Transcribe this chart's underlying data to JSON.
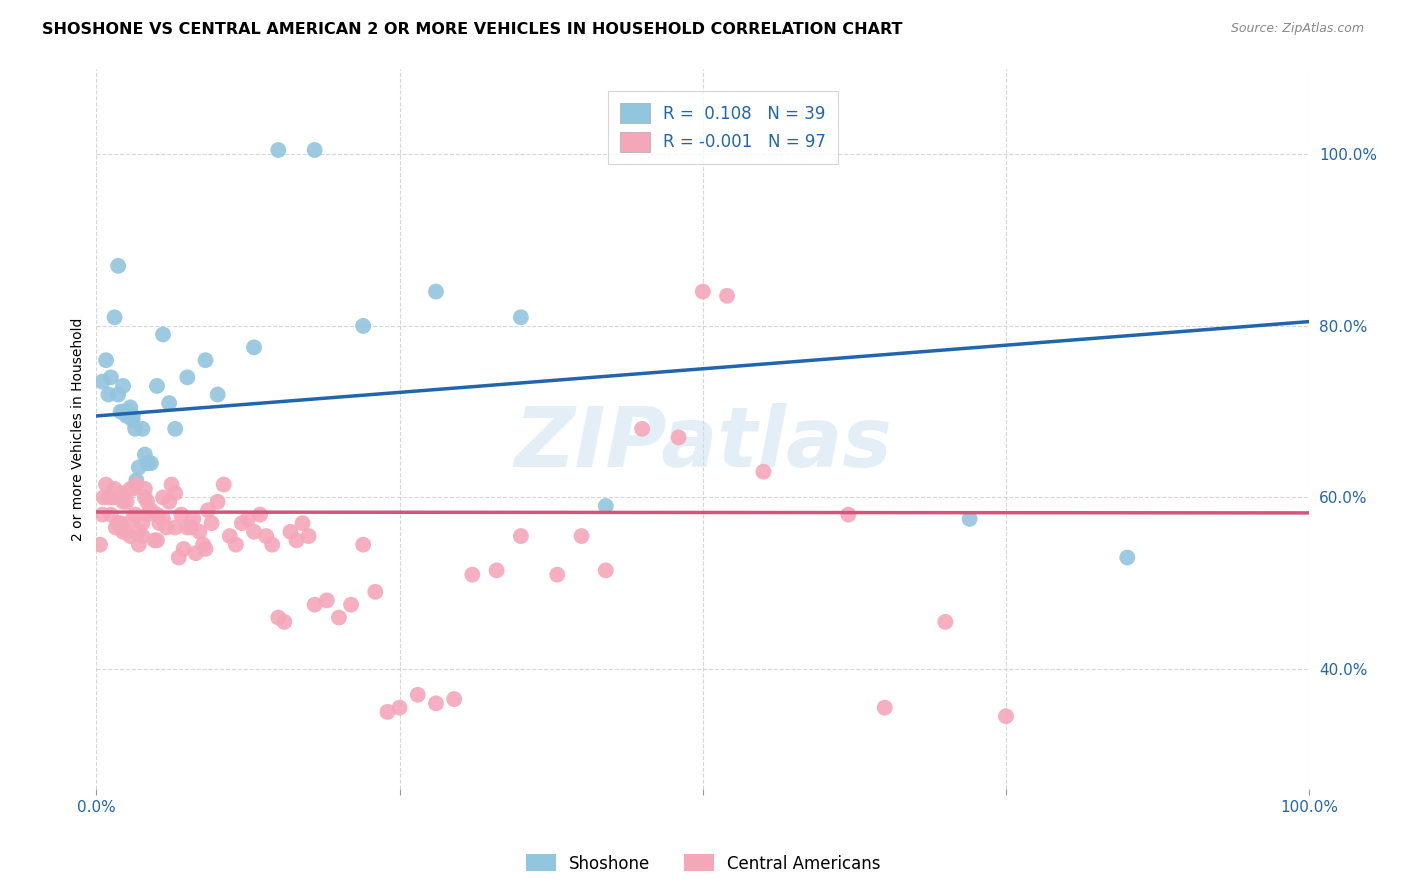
{
  "title": "SHOSHONE VS CENTRAL AMERICAN 2 OR MORE VEHICLES IN HOUSEHOLD CORRELATION CHART",
  "source": "Source: ZipAtlas.com",
  "ylabel": "2 or more Vehicles in Household",
  "xlim": [
    0.0,
    1.0
  ],
  "ylim": [
    0.26,
    1.1
  ],
  "yticks": [
    0.4,
    0.6,
    0.8,
    1.0
  ],
  "ytick_labels": [
    "40.0%",
    "60.0%",
    "80.0%",
    "100.0%"
  ],
  "blue_R": 0.108,
  "blue_N": 39,
  "pink_R": -0.001,
  "pink_N": 97,
  "blue_color": "#92c5de",
  "pink_color": "#f4a7b9",
  "blue_line_color": "#2166ac",
  "pink_line_color": "#d6537a",
  "legend_text_color": "#2166ac",
  "watermark_text": "ZIPatlas",
  "blue_line_x0": 0.0,
  "blue_line_y0": 0.695,
  "blue_line_x1": 1.0,
  "blue_line_y1": 0.805,
  "pink_line_x0": 0.0,
  "pink_line_y0": 0.583,
  "pink_line_x1": 1.0,
  "pink_line_y1": 0.582,
  "blue_points_x": [
    0.005,
    0.008,
    0.01,
    0.012,
    0.015,
    0.018,
    0.018,
    0.02,
    0.022,
    0.022,
    0.025,
    0.025,
    0.028,
    0.028,
    0.03,
    0.03,
    0.032,
    0.033,
    0.035,
    0.038,
    0.04,
    0.042,
    0.045,
    0.05,
    0.055,
    0.06,
    0.065,
    0.075,
    0.09,
    0.1,
    0.13,
    0.15,
    0.18,
    0.22,
    0.28,
    0.35,
    0.42,
    0.72,
    0.85
  ],
  "blue_points_y": [
    0.735,
    0.76,
    0.72,
    0.74,
    0.81,
    0.87,
    0.72,
    0.7,
    0.73,
    0.7,
    0.7,
    0.695,
    0.705,
    0.695,
    0.695,
    0.69,
    0.68,
    0.62,
    0.635,
    0.68,
    0.65,
    0.64,
    0.64,
    0.73,
    0.79,
    0.71,
    0.68,
    0.74,
    0.76,
    0.72,
    0.775,
    1.005,
    1.005,
    0.8,
    0.84,
    0.81,
    0.59,
    0.575,
    0.53
  ],
  "pink_points_x": [
    0.003,
    0.005,
    0.006,
    0.008,
    0.01,
    0.012,
    0.014,
    0.015,
    0.016,
    0.018,
    0.018,
    0.02,
    0.02,
    0.022,
    0.022,
    0.025,
    0.025,
    0.028,
    0.028,
    0.03,
    0.03,
    0.032,
    0.033,
    0.035,
    0.035,
    0.038,
    0.038,
    0.04,
    0.04,
    0.042,
    0.042,
    0.045,
    0.048,
    0.05,
    0.05,
    0.052,
    0.055,
    0.055,
    0.058,
    0.06,
    0.062,
    0.065,
    0.065,
    0.068,
    0.07,
    0.072,
    0.075,
    0.078,
    0.08,
    0.082,
    0.085,
    0.088,
    0.09,
    0.092,
    0.095,
    0.1,
    0.105,
    0.11,
    0.115,
    0.12,
    0.125,
    0.13,
    0.135,
    0.14,
    0.145,
    0.15,
    0.155,
    0.16,
    0.165,
    0.17,
    0.175,
    0.18,
    0.19,
    0.2,
    0.21,
    0.22,
    0.23,
    0.24,
    0.25,
    0.265,
    0.28,
    0.295,
    0.31,
    0.33,
    0.35,
    0.38,
    0.4,
    0.42,
    0.45,
    0.48,
    0.5,
    0.52,
    0.55,
    0.62,
    0.65,
    0.7,
    0.75
  ],
  "pink_points_y": [
    0.545,
    0.58,
    0.6,
    0.615,
    0.6,
    0.58,
    0.6,
    0.61,
    0.565,
    0.57,
    0.6,
    0.605,
    0.57,
    0.595,
    0.56,
    0.56,
    0.595,
    0.61,
    0.555,
    0.61,
    0.575,
    0.58,
    0.615,
    0.56,
    0.545,
    0.57,
    0.555,
    0.61,
    0.6,
    0.595,
    0.58,
    0.585,
    0.55,
    0.55,
    0.58,
    0.57,
    0.6,
    0.575,
    0.565,
    0.595,
    0.615,
    0.605,
    0.565,
    0.53,
    0.58,
    0.54,
    0.565,
    0.565,
    0.575,
    0.535,
    0.56,
    0.545,
    0.54,
    0.585,
    0.57,
    0.595,
    0.615,
    0.555,
    0.545,
    0.57,
    0.575,
    0.56,
    0.58,
    0.555,
    0.545,
    0.46,
    0.455,
    0.56,
    0.55,
    0.57,
    0.555,
    0.475,
    0.48,
    0.46,
    0.475,
    0.545,
    0.49,
    0.35,
    0.355,
    0.37,
    0.36,
    0.365,
    0.51,
    0.515,
    0.555,
    0.51,
    0.555,
    0.515,
    0.68,
    0.67,
    0.84,
    0.835,
    0.63,
    0.58,
    0.355,
    0.455,
    0.345
  ]
}
